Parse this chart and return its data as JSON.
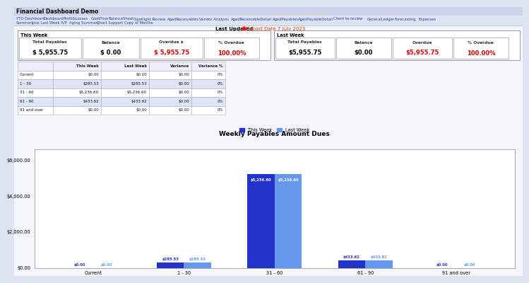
{
  "title": "Financial Dashboard Demo",
  "nav_items_row1": [
    "YTO Dashboard",
    "Dashboard",
    "Profit&Losses",
    "CashFlow",
    "BalanceSheet",
    "Spotlight Review",
    "AgedReceivables",
    "Vendor Analysis",
    "AgedReceivableDetail",
    "AgedPayables",
    "AgedPayableDetail",
    "Client to review",
    "GeneralLedger",
    "Forecasting",
    "Expenses"
  ],
  "nav_items_row2": [
    "Summary",
    "Live Last Week A/P",
    "Aging Summary",
    "Chart Support",
    "Copy of Months"
  ],
  "last_updated_label": "Last Updated",
  "report_date": "Report Date 7 July 2023",
  "this_week_label": "This Week",
  "last_week_label": "Last Week",
  "this_week_kpi_labels": [
    "Total Payables",
    "Balance",
    "Overdue $",
    "% Overdue"
  ],
  "this_week_kpi_values": [
    "$ 5,955.75",
    "$ 0.00",
    "$ 5,955.75",
    "100.00%"
  ],
  "this_week_kpi_colors": [
    "#000000",
    "#000000",
    "#cc0000",
    "#cc0000"
  ],
  "last_week_kpi_labels": [
    "Total Payables",
    "Balance",
    "Overdue",
    "% Overdue"
  ],
  "last_week_kpi_values": [
    "$5,955.75",
    "$0.00",
    "$5,955.75",
    "100.00%"
  ],
  "last_week_kpi_colors": [
    "#000000",
    "#000000",
    "#cc0000",
    "#cc0000"
  ],
  "table_headers": [
    "",
    "This Week",
    "Last Week",
    "Variance",
    "Variance %"
  ],
  "table_rows": [
    [
      "Current",
      "$0.00",
      "$0.00",
      "$0.00",
      "0%"
    ],
    [
      "1 - 30",
      "$285.53",
      "$285.53",
      "$0.00",
      "0%"
    ],
    [
      "31 - 60",
      "$5,236.60",
      "$5,236.60",
      "$0.00",
      "0%"
    ],
    [
      "61 - 90",
      "$433.62",
      "$433.62",
      "$0.00",
      "0%"
    ],
    [
      "91 and over",
      "$0.00",
      "$0.00",
      "$0.00",
      "0%"
    ]
  ],
  "chart_title": "Weekly Payables Amount Dues",
  "legend_this_week": "This Week",
  "legend_last_week": "Last Week",
  "categories": [
    "Current",
    "1 - 30",
    "31 - 60",
    "61 - 90",
    "91 and over"
  ],
  "this_week_values": [
    0.0,
    285.53,
    5236.6,
    433.62,
    0.0
  ],
  "last_week_values": [
    0.0,
    285.53,
    5236.6,
    433.62,
    0.0
  ],
  "this_week_bar_labels": [
    "$0.00",
    "$285.53",
    "$5,236.60",
    "$433.62",
    "$0.00"
  ],
  "last_week_bar_labels": [
    "$0.00",
    "$285.53",
    "$5,236.60",
    "$433.62",
    "$0.00"
  ],
  "bar_color_this": "#2233cc",
  "bar_color_last": "#6699ee",
  "y_ticks": [
    0,
    2000,
    4000,
    6000
  ],
  "y_tick_labels": [
    "$0.00",
    "$2,000.00",
    "$4,000.00",
    "$6,000.00"
  ],
  "nav_color": "#2244aa",
  "bg_color": "#dde3f0",
  "chart_bg": "#ffffff"
}
